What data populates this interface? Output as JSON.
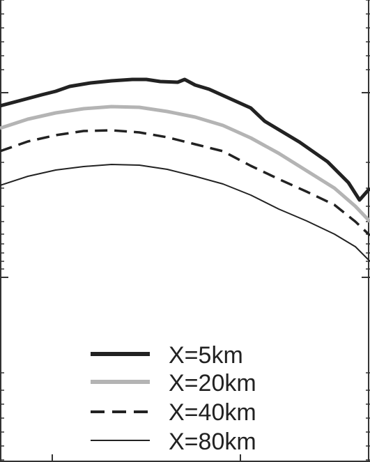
{
  "chart_data": {
    "type": "line",
    "title": "",
    "xlabel": "",
    "ylabel": "",
    "x_scale": "log",
    "y_scale": "log",
    "grid": false,
    "legend_position": "bottom-center",
    "series": [
      {
        "name": "X=5km",
        "color": "#222222",
        "style": "thick-solid",
        "points": [
          [
            0,
            152
          ],
          [
            30,
            144
          ],
          [
            60,
            136
          ],
          [
            80,
            131
          ],
          [
            100,
            124
          ],
          [
            130,
            119
          ],
          [
            160,
            116
          ],
          [
            190,
            114
          ],
          [
            210,
            114
          ],
          [
            230,
            117
          ],
          [
            255,
            118
          ],
          [
            265,
            114
          ],
          [
            280,
            122
          ],
          [
            300,
            128
          ],
          [
            320,
            137
          ],
          [
            340,
            146
          ],
          [
            360,
            155
          ],
          [
            380,
            174
          ],
          [
            400,
            186
          ],
          [
            430,
            204
          ],
          [
            470,
            232
          ],
          [
            500,
            262
          ],
          [
            516,
            287
          ],
          [
            531,
            270
          ]
        ]
      },
      {
        "name": "X=20km",
        "color": "#b4b4b4",
        "style": "thick-solid",
        "points": [
          [
            0,
            184
          ],
          [
            40,
            171
          ],
          [
            80,
            162
          ],
          [
            120,
            156
          ],
          [
            160,
            153
          ],
          [
            200,
            154
          ],
          [
            240,
            160
          ],
          [
            280,
            168
          ],
          [
            320,
            180
          ],
          [
            360,
            198
          ],
          [
            400,
            220
          ],
          [
            440,
            245
          ],
          [
            480,
            270
          ],
          [
            510,
            296
          ],
          [
            531,
            318
          ]
        ]
      },
      {
        "name": "X=40km",
        "color": "#222222",
        "style": "dashed",
        "points": [
          [
            0,
            217
          ],
          [
            40,
            203
          ],
          [
            80,
            194
          ],
          [
            120,
            188
          ],
          [
            160,
            187
          ],
          [
            200,
            190
          ],
          [
            240,
            197
          ],
          [
            280,
            207
          ],
          [
            320,
            217
          ],
          [
            360,
            238
          ],
          [
            400,
            257
          ],
          [
            440,
            275
          ],
          [
            480,
            294
          ],
          [
            510,
            318
          ],
          [
            531,
            338
          ]
        ]
      },
      {
        "name": "X=80km",
        "color": "#222222",
        "style": "thin-solid",
        "points": [
          [
            0,
            266
          ],
          [
            40,
            253
          ],
          [
            80,
            244
          ],
          [
            120,
            239
          ],
          [
            160,
            236
          ],
          [
            200,
            237
          ],
          [
            240,
            243
          ],
          [
            280,
            253
          ],
          [
            320,
            264
          ],
          [
            360,
            280
          ],
          [
            400,
            300
          ],
          [
            440,
            317
          ],
          [
            480,
            336
          ],
          [
            510,
            354
          ],
          [
            531,
            375
          ]
        ]
      }
    ],
    "x_minor_ticks": [
      75,
      345
    ],
    "y_ticks_major": [
      133,
      398
    ],
    "y_ticks_minor": [
      0,
      20,
      40,
      60,
      80,
      100,
      233,
      270,
      296,
      318,
      336,
      350,
      363,
      375,
      386,
      535,
      560,
      580,
      600,
      620,
      640,
      660
    ]
  }
}
